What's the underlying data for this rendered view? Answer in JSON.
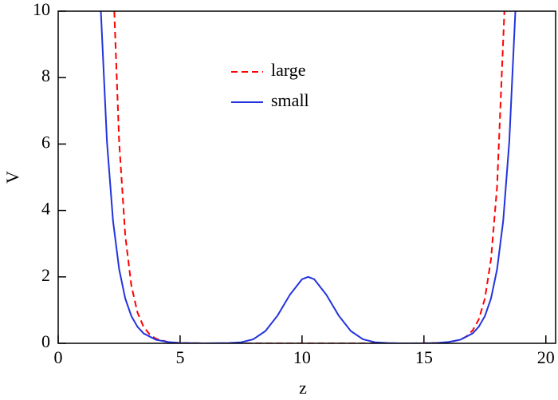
{
  "chart_data": {
    "type": "line",
    "x_label": "z",
    "y_label": "V",
    "xlim": [
      0,
      20.4
    ],
    "ylim": [
      0,
      10
    ],
    "xticks": [
      0,
      5,
      10,
      15,
      20
    ],
    "yticks": [
      0,
      2,
      4,
      6,
      8,
      10
    ],
    "legend": "top-center",
    "series": [
      {
        "name": "large",
        "color": "#ff0000",
        "dash": true,
        "x": [
          2.3,
          2.5,
          2.75,
          3,
          3.25,
          3.5,
          3.75,
          4,
          4.5,
          5,
          6,
          14.5,
          15.5,
          16,
          16.5,
          16.75,
          17,
          17.25,
          17.5,
          17.75,
          18,
          18.3
        ],
        "values": [
          10,
          6.07,
          3.25,
          1.74,
          0.93,
          0.5,
          0.27,
          0.14,
          0.04,
          0.01,
          0,
          0,
          0.01,
          0.03,
          0.11,
          0.21,
          0.39,
          0.72,
          1.35,
          2.53,
          4.72,
          10
        ]
      },
      {
        "name": "small",
        "color": "#2233dd",
        "dash": false,
        "x": [
          1.75,
          2,
          2.25,
          2.5,
          2.75,
          3,
          3.25,
          3.5,
          4,
          4.5,
          5,
          6,
          7,
          7.5,
          8,
          8.5,
          9,
          9.5,
          10,
          10.25,
          10.5,
          11,
          11.5,
          12,
          12.5,
          13,
          13.5,
          14,
          15,
          15.5,
          16,
          16.5,
          17,
          17.25,
          17.5,
          17.75,
          18,
          18.25,
          18.5,
          18.75
        ],
        "values": [
          10,
          6.07,
          3.68,
          2.23,
          1.35,
          0.82,
          0.5,
          0.3,
          0.11,
          0.04,
          0.01,
          0,
          0.01,
          0.03,
          0.12,
          0.37,
          0.84,
          1.46,
          1.93,
          2,
          1.93,
          1.46,
          0.84,
          0.37,
          0.12,
          0.03,
          0.01,
          0,
          0,
          0.01,
          0.04,
          0.11,
          0.3,
          0.5,
          0.82,
          1.35,
          2.23,
          3.68,
          6.07,
          10
        ]
      }
    ]
  }
}
